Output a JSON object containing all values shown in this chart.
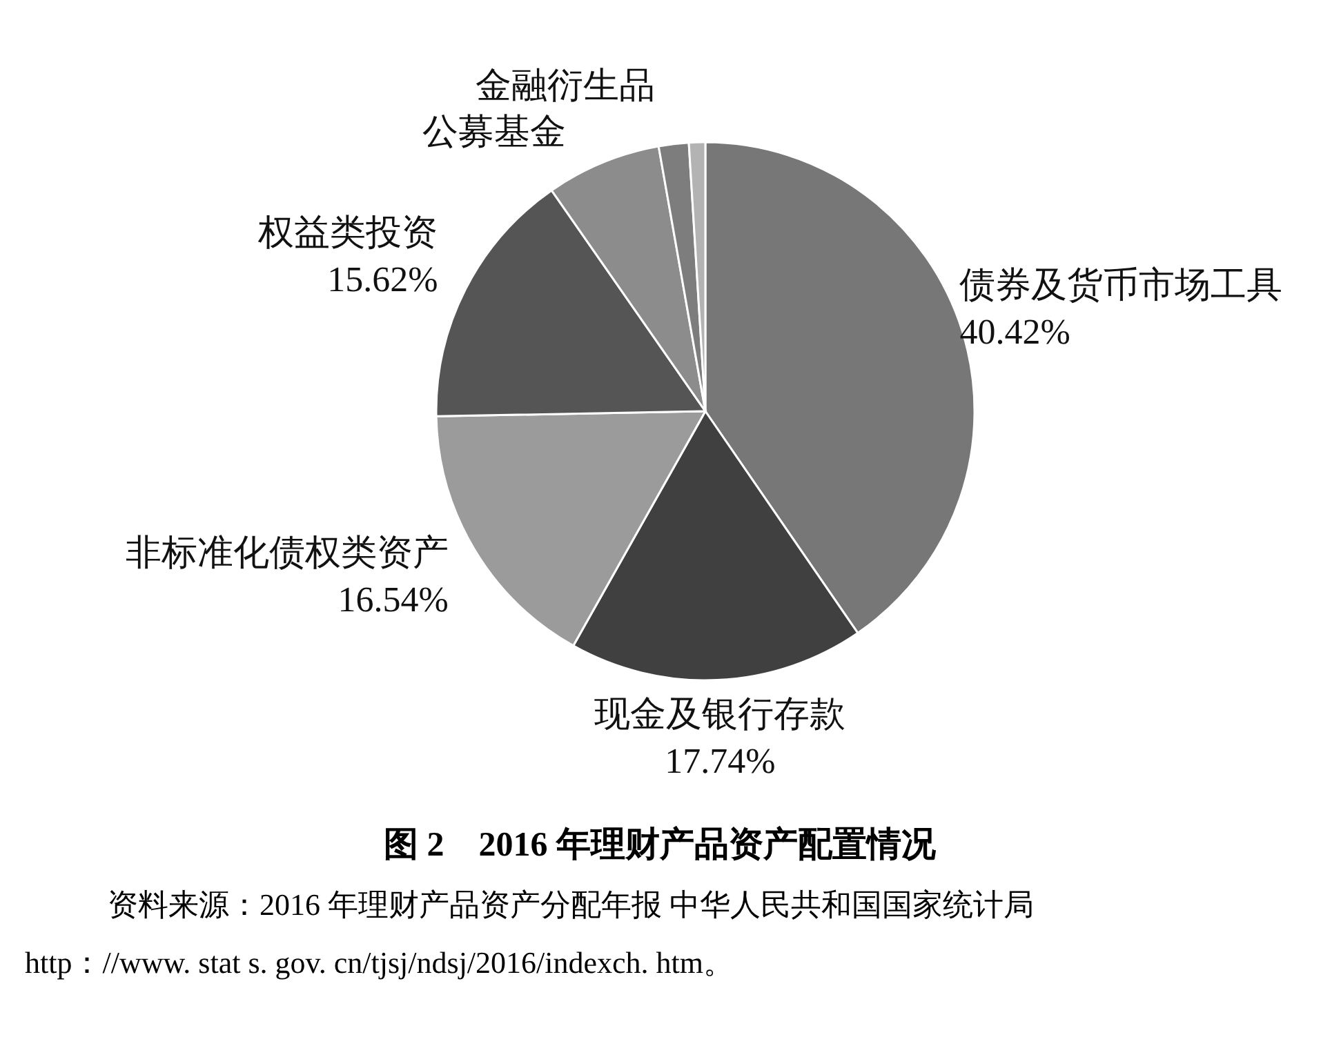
{
  "chart_data": {
    "type": "pie",
    "title": "图 2　2016 年理财产品资产配置情况",
    "categories": [
      "债券及货币市场工具",
      "现金及银行存款",
      "非标准化债权类资产",
      "权益类投资",
      "公募基金",
      "金融衍生品",
      null
    ],
    "values": [
      40.42,
      17.74,
      16.54,
      15.62,
      6.9,
      1.8,
      0.98
    ],
    "value_labels": [
      "40.42%",
      "17.74%",
      "16.54%",
      "15.62%",
      null,
      null,
      null
    ],
    "colors": [
      "#777777",
      "#404040",
      "#9b9b9b",
      "#555555",
      "#8c8c8c",
      "#7d7d7d",
      "#b3b3b3"
    ],
    "annotations": [
      "资料来源：2016 年理财产品资产分配年报 中华人民共和国国家统计局",
      "http：//www. stat s. gov. cn/tjsj/ndsj/2016/indexch. htm。"
    ]
  }
}
